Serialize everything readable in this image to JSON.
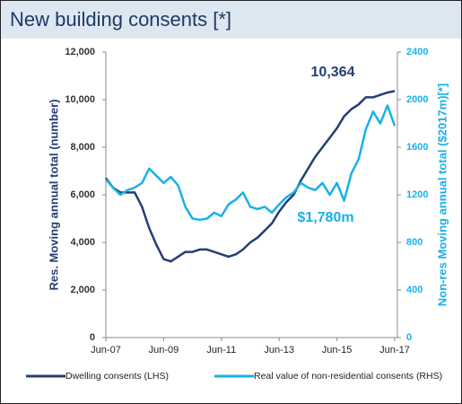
{
  "chart_data": {
    "type": "line",
    "title": "New building consents [*]",
    "categories": [
      "Jun-07",
      null,
      null,
      null,
      null,
      null,
      null,
      null,
      "Jun-09",
      null,
      null,
      null,
      null,
      null,
      null,
      null,
      "Jun-11",
      null,
      null,
      null,
      null,
      null,
      null,
      null,
      "Jun-13",
      null,
      null,
      null,
      null,
      null,
      null,
      null,
      "Jun-15",
      null,
      null,
      null,
      null,
      null,
      null,
      null,
      "Jun-17"
    ],
    "series": [
      {
        "name": "Dwelling consents (LHS)",
        "color": "#243f73",
        "axis": "y",
        "values": [
          6700,
          6300,
          6100,
          6100,
          6100,
          5500,
          4600,
          3900,
          3300,
          3200,
          3400,
          3600,
          3600,
          3700,
          3700,
          3600,
          3500,
          3400,
          3500,
          3700,
          4000,
          4200,
          4500,
          4800,
          5300,
          5700,
          6000,
          6600,
          7100,
          7600,
          8000,
          8400,
          8800,
          9300,
          9600,
          9800,
          10100,
          10100,
          10200,
          10300,
          10364
        ]
      },
      {
        "name": "Real value of non-residential consents (RHS)",
        "color": "#1ab0e8",
        "axis": "y2",
        "values": [
          1330,
          1260,
          1200,
          1240,
          1260,
          1300,
          1420,
          1360,
          1300,
          1350,
          1280,
          1100,
          1000,
          990,
          1000,
          1050,
          1020,
          1120,
          1160,
          1220,
          1100,
          1080,
          1100,
          1050,
          1120,
          1180,
          1220,
          1300,
          1260,
          1240,
          1300,
          1200,
          1300,
          1150,
          1380,
          1500,
          1750,
          1900,
          1800,
          1950,
          1780
        ]
      }
    ],
    "ylabel": "Res. Moving annual total (number)",
    "y2label": "Non-res Moving annual total ($2017m)[*]",
    "ylim": [
      0,
      12000
    ],
    "yticks": [
      0,
      {
        "value": 2000,
        "label": "2,000"
      },
      {
        "value": 4000,
        "label": "4,000"
      },
      {
        "value": 6000,
        "label": "6,000"
      },
      {
        "value": 8000,
        "label": "8,000"
      },
      {
        "value": 10000,
        "label": "10,000"
      },
      {
        "value": 12000,
        "label": "12,000"
      }
    ],
    "y2lim": [
      0,
      2400
    ],
    "y2ticks": [
      0,
      400,
      800,
      1200,
      1600,
      2000,
      2400
    ],
    "annotations": [
      {
        "text": "10,364",
        "series": 0
      },
      {
        "text": "$1,780m",
        "series": 1
      }
    ],
    "legend": "bottom"
  }
}
